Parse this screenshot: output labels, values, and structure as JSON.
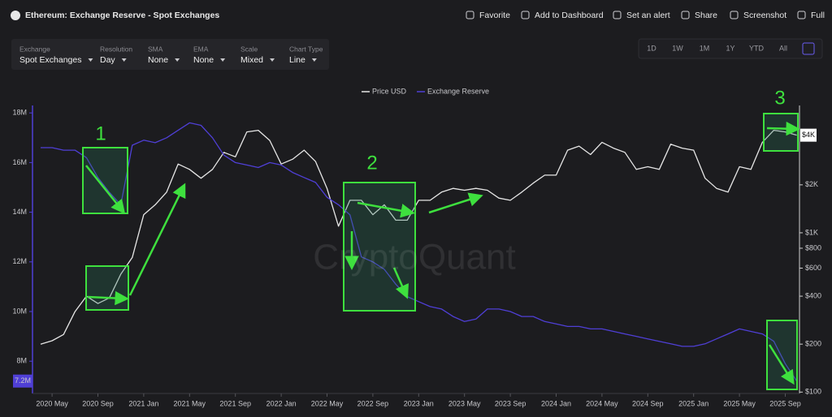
{
  "header": {
    "title": "Ethereum: Exchange Reserve - Spot Exchanges",
    "actions": [
      "Favorite",
      "Add to Dashboard",
      "Set an alert",
      "Share",
      "Screenshot",
      "Full"
    ]
  },
  "controls": [
    {
      "label": "Exchange",
      "value": "Spot Exchanges"
    },
    {
      "label": "Resolution",
      "value": "Day"
    },
    {
      "label": "SMA",
      "value": "None"
    },
    {
      "label": "EMA",
      "value": "None"
    },
    {
      "label": "Scale",
      "value": "Mixed"
    },
    {
      "label": "Chart Type",
      "value": "Line"
    }
  ],
  "ranges": [
    "1D",
    "1W",
    "1M",
    "1Y",
    "YTD",
    "All"
  ],
  "watermark": "CryptoQuant",
  "chart_data": {
    "type": "line",
    "x": [
      null,
      "2020 May",
      null,
      null,
      null,
      "2020 Sep",
      null,
      null,
      null,
      "2021 Jan",
      null,
      null,
      null,
      "2021 May",
      null,
      null,
      null,
      "2021 Sep",
      null,
      null,
      null,
      "2022 Jan",
      null,
      null,
      null,
      "2022 May",
      null,
      null,
      null,
      "2022 Sep",
      null,
      null,
      null,
      "2023 Jan",
      null,
      null,
      null,
      "2023 May",
      null,
      null,
      null,
      "2023 Sep",
      null,
      null,
      null,
      "2024 Jan",
      null,
      null,
      null,
      "2024 May",
      null,
      null,
      null,
      "2024 Sep",
      null,
      null,
      null,
      "2025 Jan",
      null,
      null,
      null,
      "2025 May",
      null,
      null,
      null,
      "2025 Sep",
      null
    ],
    "series": [
      {
        "name": "Price USD",
        "color": "#e6e6e6",
        "axis": "y2",
        "values": [
          200,
          210,
          230,
          320,
          400,
          360,
          390,
          550,
          700,
          1300,
          1500,
          1800,
          2700,
          2500,
          2200,
          2500,
          3200,
          3000,
          4300,
          4400,
          3800,
          2700,
          2900,
          3300,
          2800,
          1900,
          1100,
          1600,
          1600,
          1300,
          1500,
          1200,
          1200,
          1600,
          1600,
          1800,
          1900,
          1850,
          1900,
          1850,
          1650,
          1600,
          1800,
          2050,
          2300,
          2300,
          3300,
          3500,
          3100,
          3700,
          3400,
          3200,
          2500,
          2600,
          2500,
          3600,
          3400,
          3300,
          2200,
          1900,
          1800,
          2600,
          2500,
          3700,
          4400,
          4300,
          4100
        ]
      },
      {
        "name": "Exchange Reserve",
        "color": "#4f3fd6",
        "values": [
          16600000,
          16600000,
          16500000,
          16500000,
          16200000,
          15400000,
          14800000,
          14300000,
          16700000,
          16900000,
          16800000,
          17000000,
          17300000,
          17600000,
          17500000,
          17000000,
          16300000,
          16000000,
          15900000,
          15800000,
          16000000,
          15900000,
          15600000,
          15400000,
          15200000,
          14600000,
          14300000,
          13900000,
          12200000,
          12000000,
          11700000,
          11100000,
          10600000,
          10400000,
          10200000,
          10100000,
          9800000,
          9600000,
          9700000,
          10100000,
          10100000,
          10000000,
          9800000,
          9800000,
          9600000,
          9500000,
          9400000,
          9400000,
          9300000,
          9300000,
          9200000,
          9100000,
          9000000,
          8900000,
          8800000,
          8700000,
          8600000,
          8600000,
          8700000,
          8900000,
          9100000,
          9300000,
          9200000,
          9100000,
          8800000,
          7900000,
          7200000
        ]
      }
    ],
    "ylim": [
      6700000,
      18300000
    ],
    "yticks": [
      {
        "value": 8000000,
        "label": "8M"
      },
      {
        "value": 10000000,
        "label": "10M"
      },
      {
        "value": 12000000,
        "label": "12M"
      },
      {
        "value": 14000000,
        "label": "14M"
      },
      {
        "value": 16000000,
        "label": "16M"
      },
      {
        "value": 18000000,
        "label": "18M"
      }
    ],
    "y2lim": [
      98,
      6300
    ],
    "y2ticks": [
      {
        "value": 100,
        "label": "$100"
      },
      {
        "value": 200,
        "label": "$200"
      },
      {
        "value": 400,
        "label": "$400"
      },
      {
        "value": 600,
        "label": "$600"
      },
      {
        "value": 800,
        "label": "$800"
      },
      {
        "value": 1000,
        "label": "$1K"
      },
      {
        "value": 2000,
        "label": "$2K"
      }
    ],
    "y2_log": true,
    "markers": [
      {
        "axis": "y",
        "value": 7200000,
        "label": "7.2M"
      },
      {
        "axis": "y2",
        "value": 4100,
        "label": "$4K"
      }
    ],
    "annotations": [
      "1",
      "2",
      "3"
    ]
  }
}
